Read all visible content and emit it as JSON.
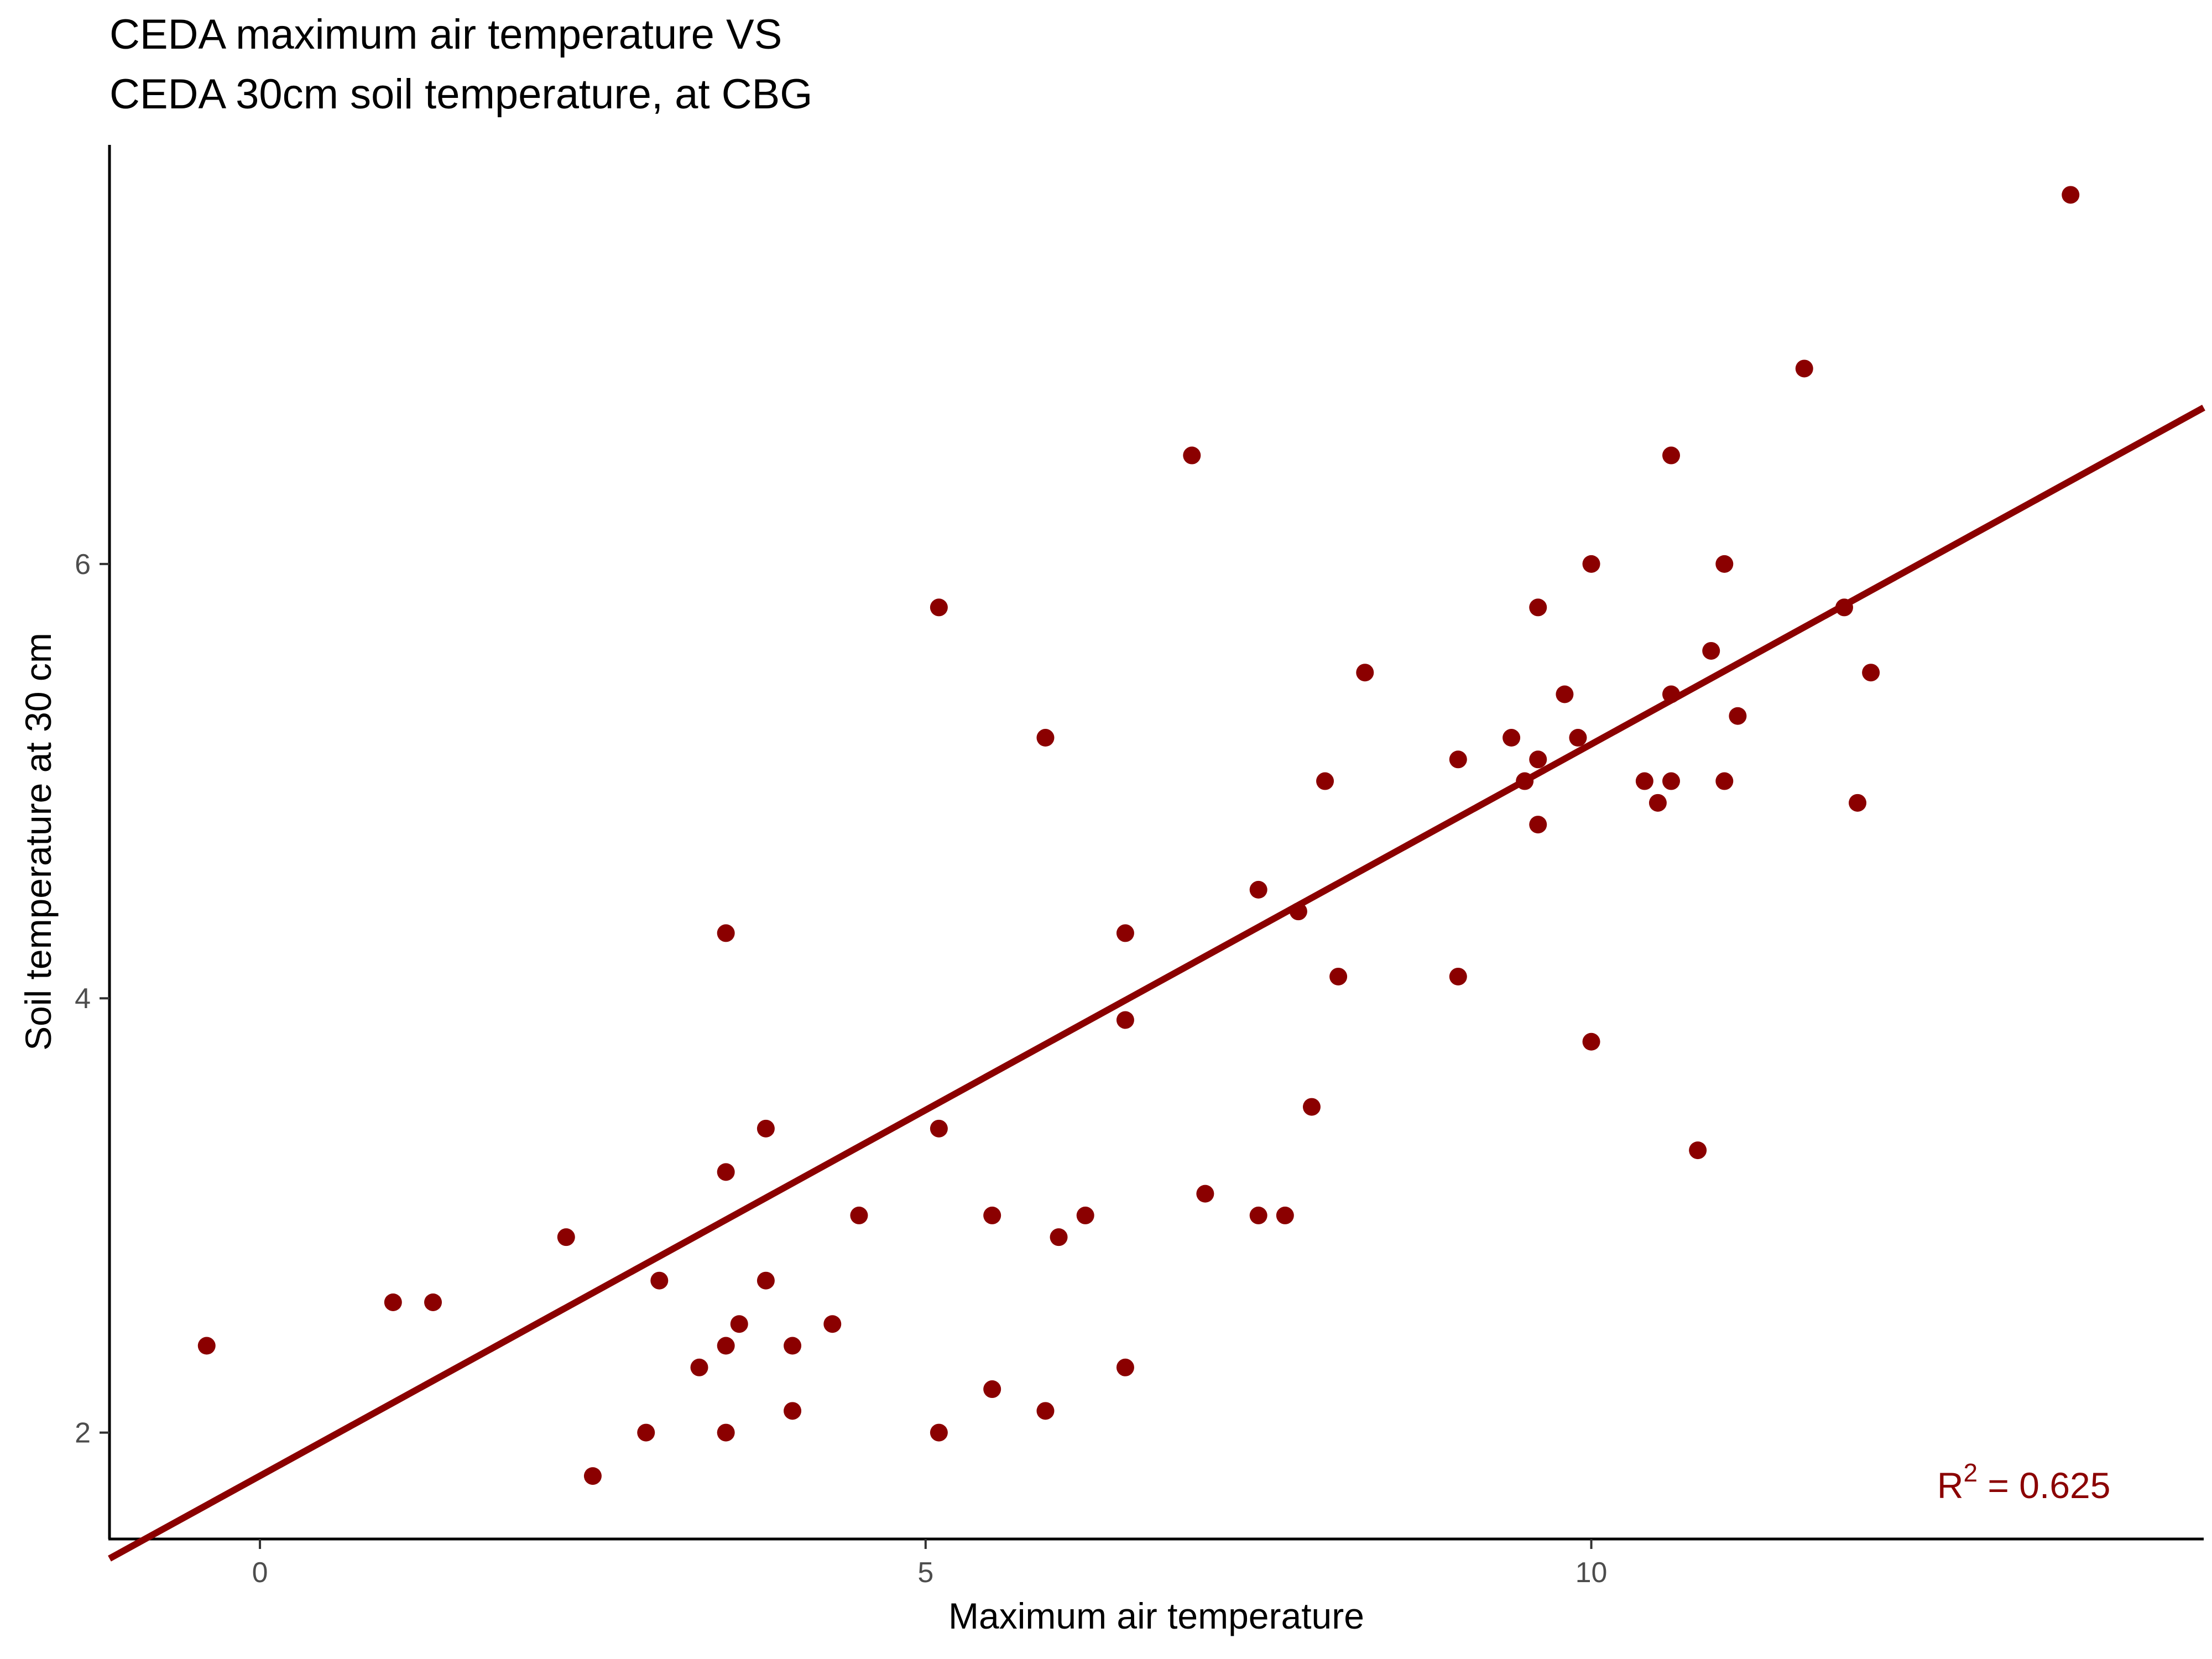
{
  "chart_data": {
    "type": "scatter",
    "title_lines": [
      "CEDA maximum air temperature VS",
      "CEDA 30cm soil temperature, at CBG"
    ],
    "xlabel": "Maximum air temperature",
    "ylabel": "Soil temperature at 30 cm",
    "xlim": [
      -1.13,
      14.6
    ],
    "ylim": [
      1.51,
      7.93
    ],
    "x_ticks": [
      0,
      5,
      10
    ],
    "y_ticks": [
      2,
      4,
      6
    ],
    "grid": false,
    "legend": "none",
    "point_color": "#8b0000",
    "line_color": "#8b0000",
    "fit_line": {
      "x": [
        -1.13,
        14.6
      ],
      "y": [
        1.42,
        6.72
      ]
    },
    "annotation": {
      "base": "R",
      "superscript": "2",
      "rest": " = 0.625",
      "x": 13.9,
      "y": 1.76
    },
    "points": [
      {
        "x": -0.4,
        "y": 2.4
      },
      {
        "x": 1.0,
        "y": 2.6
      },
      {
        "x": 1.3,
        "y": 2.6
      },
      {
        "x": 2.3,
        "y": 2.9
      },
      {
        "x": 2.5,
        "y": 1.8
      },
      {
        "x": 2.9,
        "y": 2.0
      },
      {
        "x": 3.0,
        "y": 2.7
      },
      {
        "x": 3.3,
        "y": 2.3
      },
      {
        "x": 3.5,
        "y": 2.4
      },
      {
        "x": 3.5,
        "y": 2.0
      },
      {
        "x": 3.5,
        "y": 3.2
      },
      {
        "x": 3.5,
        "y": 4.3
      },
      {
        "x": 3.6,
        "y": 2.5
      },
      {
        "x": 3.8,
        "y": 2.7
      },
      {
        "x": 3.8,
        "y": 3.4
      },
      {
        "x": 4.0,
        "y": 2.4
      },
      {
        "x": 4.0,
        "y": 2.1
      },
      {
        "x": 4.3,
        "y": 2.5
      },
      {
        "x": 4.5,
        "y": 3.0
      },
      {
        "x": 5.1,
        "y": 5.8
      },
      {
        "x": 5.1,
        "y": 3.4
      },
      {
        "x": 5.1,
        "y": 2.0
      },
      {
        "x": 5.5,
        "y": 3.0
      },
      {
        "x": 5.5,
        "y": 2.2
      },
      {
        "x": 5.9,
        "y": 5.2
      },
      {
        "x": 5.9,
        "y": 2.1
      },
      {
        "x": 6.0,
        "y": 2.9
      },
      {
        "x": 6.2,
        "y": 3.0
      },
      {
        "x": 6.5,
        "y": 4.3
      },
      {
        "x": 6.5,
        "y": 3.9
      },
      {
        "x": 6.5,
        "y": 2.3
      },
      {
        "x": 7.0,
        "y": 6.5
      },
      {
        "x": 7.1,
        "y": 3.1
      },
      {
        "x": 7.5,
        "y": 4.5
      },
      {
        "x": 7.5,
        "y": 3.0
      },
      {
        "x": 7.7,
        "y": 3.0
      },
      {
        "x": 7.8,
        "y": 4.4
      },
      {
        "x": 7.9,
        "y": 3.5
      },
      {
        "x": 8.0,
        "y": 5.0
      },
      {
        "x": 8.1,
        "y": 4.1
      },
      {
        "x": 8.3,
        "y": 5.5
      },
      {
        "x": 9.0,
        "y": 5.1
      },
      {
        "x": 9.0,
        "y": 4.1
      },
      {
        "x": 9.4,
        "y": 5.2
      },
      {
        "x": 9.5,
        "y": 5.0
      },
      {
        "x": 9.6,
        "y": 5.8
      },
      {
        "x": 9.6,
        "y": 5.1
      },
      {
        "x": 9.6,
        "y": 4.8
      },
      {
        "x": 9.8,
        "y": 5.4
      },
      {
        "x": 9.9,
        "y": 5.2
      },
      {
        "x": 10.0,
        "y": 6.0
      },
      {
        "x": 10.0,
        "y": 3.8
      },
      {
        "x": 10.4,
        "y": 5.0
      },
      {
        "x": 10.5,
        "y": 4.9
      },
      {
        "x": 10.6,
        "y": 6.5
      },
      {
        "x": 10.6,
        "y": 5.4
      },
      {
        "x": 10.6,
        "y": 5.0
      },
      {
        "x": 10.8,
        "y": 3.3
      },
      {
        "x": 10.9,
        "y": 5.6
      },
      {
        "x": 11.0,
        "y": 6.0
      },
      {
        "x": 11.0,
        "y": 5.0
      },
      {
        "x": 11.1,
        "y": 5.3
      },
      {
        "x": 11.6,
        "y": 6.9
      },
      {
        "x": 11.9,
        "y": 5.8
      },
      {
        "x": 12.0,
        "y": 4.9
      },
      {
        "x": 12.1,
        "y": 5.5
      },
      {
        "x": 13.6,
        "y": 7.7
      }
    ]
  }
}
